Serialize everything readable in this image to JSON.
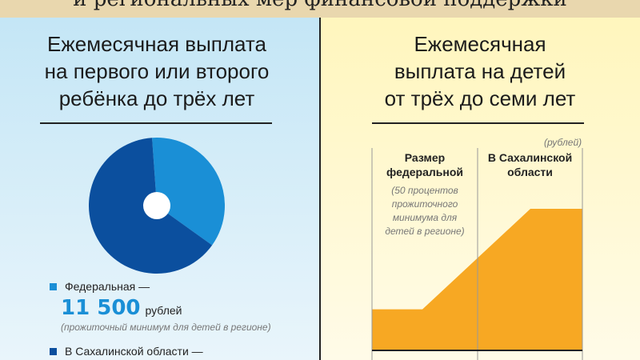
{
  "header": {
    "title": "и региональных мер финансовой поддержки"
  },
  "left": {
    "title_lines": [
      "Ежемесячная выплата",
      "на первого или второго",
      "ребёнка до трёх лет"
    ],
    "legend": [
      {
        "label": "Федеральная —",
        "amount": "11 500",
        "unit": "рублей",
        "note": "(прожиточный минимум для детей в регионе)",
        "color": "#1a8fd6"
      },
      {
        "label": "В Сахалинской области —",
        "color": "#0b4f9e"
      }
    ]
  },
  "right": {
    "title_lines": [
      "Ежемесячная",
      "выплата на детей",
      "от трёх до семи лет"
    ],
    "unit_note": "(рублей)",
    "columns": [
      {
        "title_lines": [
          "Размер",
          "федеральной"
        ],
        "note_lines": [
          "(50 процентов",
          "прожиточного",
          "минимума для",
          "детей в регионе)"
        ]
      },
      {
        "title_lines": [
          "В Сахалинской",
          "области"
        ]
      }
    ]
  },
  "chart_data": [
    {
      "type": "pie",
      "slices": [
        {
          "name": "Федеральная",
          "value": 36,
          "color": "#1a8fd6"
        },
        {
          "name": "В Сахалинской области",
          "value": 64,
          "color": "#0b4f9e"
        }
      ]
    },
    {
      "type": "area",
      "categories": [
        "Размер федеральной",
        "В Сахалинской области"
      ],
      "values": [
        50,
        100
      ],
      "unit": "рублей",
      "color": "#f7a823"
    }
  ]
}
